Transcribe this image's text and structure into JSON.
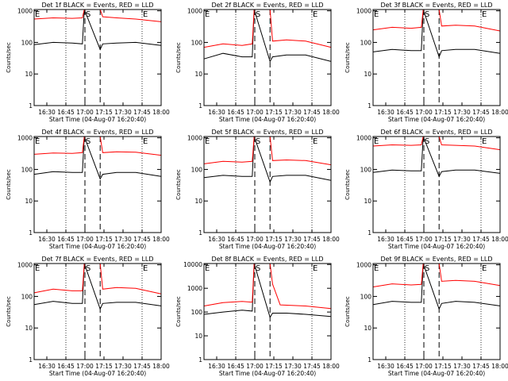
{
  "colors": {
    "events": "#000000",
    "lld": "#ff0000",
    "axis": "#000000"
  },
  "shared": {
    "xlabel": "Start Time (04-Aug-07 16:20:40)",
    "ylabel": "Counts/sec",
    "x_tick_labels": [
      "16:30",
      "16:45",
      "17:00",
      "17:15",
      "17:30",
      "17:45",
      "18:00"
    ],
    "y_tick_labels": [
      "1",
      "10",
      "100",
      "1000"
    ],
    "marker_e": "E",
    "marker_s": "S"
  },
  "chart_data": [
    {
      "type": "line",
      "title": "Det 1f BLACK = Events, RED = LLD",
      "xlabel": "Start Time (04-Aug-07 16:20:40)",
      "ylabel": "Counts/sec",
      "x_range_minutes": [
        20,
        120
      ],
      "ylim": [
        1,
        1100
      ],
      "yscale": "log",
      "x_ticks": [
        "16:30",
        "16:45",
        "17:00",
        "17:15",
        "17:30",
        "17:45",
        "18:00"
      ],
      "y_ticks": [
        "1",
        "10",
        "100",
        "1000"
      ],
      "y_tick_labels": [
        "1",
        "10",
        "100",
        "1000"
      ],
      "series": [
        {
          "name": "Events",
          "color": "#000000",
          "x": [
            20,
            35,
            50,
            58,
            59.5,
            72,
            74,
            85,
            100,
            120
          ],
          "y": [
            85,
            100,
            95,
            90,
            1100,
            60,
            90,
            95,
            100,
            80
          ]
        },
        {
          "name": "LLD",
          "color": "#ff0000",
          "x": [
            20,
            35,
            50,
            58,
            59.5,
            72,
            74,
            85,
            100,
            120
          ],
          "y": [
            550,
            600,
            580,
            600,
            1100,
            1100,
            650,
            600,
            550,
            450
          ]
        }
      ]
    },
    {
      "type": "line",
      "title": "Det 2f BLACK = Events, RED = LLD",
      "xlabel": "Start Time (04-Aug-07 16:20:40)",
      "ylabel": "Counts/sec",
      "x_range_minutes": [
        20,
        120
      ],
      "ylim": [
        1,
        1100
      ],
      "yscale": "log",
      "x_ticks": [
        "16:30",
        "16:45",
        "17:00",
        "17:15",
        "17:30",
        "17:45",
        "18:00"
      ],
      "y_ticks": [
        "1",
        "10",
        "100",
        "1000"
      ],
      "y_tick_labels": [
        "1",
        "10",
        "100",
        "1000"
      ],
      "series": [
        {
          "name": "Events",
          "color": "#000000",
          "x": [
            20,
            35,
            50,
            58,
            59.5,
            72,
            74,
            85,
            100,
            120
          ],
          "y": [
            30,
            45,
            35,
            35,
            1100,
            25,
            35,
            40,
            40,
            25
          ]
        },
        {
          "name": "LLD",
          "color": "#ff0000",
          "x": [
            20,
            35,
            50,
            58,
            59.5,
            72,
            74,
            85,
            100,
            120
          ],
          "y": [
            70,
            90,
            80,
            90,
            1100,
            1100,
            110,
            120,
            110,
            70
          ]
        }
      ]
    },
    {
      "type": "line",
      "title": "Det 3f BLACK = Events, RED = LLD",
      "xlabel": "Start Time (04-Aug-07 16:20:40)",
      "ylabel": "Counts/sec",
      "x_range_minutes": [
        20,
        120
      ],
      "ylim": [
        1,
        1100
      ],
      "yscale": "log",
      "x_ticks": [
        "16:30",
        "16:45",
        "17:00",
        "17:15",
        "17:30",
        "17:45",
        "18:00"
      ],
      "y_ticks": [
        "1",
        "10",
        "100",
        "1000"
      ],
      "y_tick_labels": [
        "1",
        "10",
        "100",
        "1000"
      ],
      "series": [
        {
          "name": "Events",
          "color": "#000000",
          "x": [
            20,
            35,
            50,
            58,
            59.5,
            72,
            74,
            85,
            100,
            120
          ],
          "y": [
            50,
            60,
            55,
            55,
            1100,
            35,
            55,
            60,
            60,
            45
          ]
        },
        {
          "name": "LLD",
          "color": "#ff0000",
          "x": [
            20,
            35,
            50,
            58,
            59.5,
            72,
            74,
            85,
            100,
            120
          ],
          "y": [
            250,
            300,
            280,
            300,
            1100,
            1100,
            330,
            350,
            330,
            230
          ]
        }
      ]
    },
    {
      "type": "line",
      "title": "Det 4f BLACK = Events, RED = LLD",
      "xlabel": "Start Time (04-Aug-07 16:20:40)",
      "ylabel": "Counts/sec",
      "x_range_minutes": [
        20,
        120
      ],
      "ylim": [
        1,
        1100
      ],
      "yscale": "log",
      "x_ticks": [
        "16:30",
        "16:45",
        "17:00",
        "17:15",
        "17:30",
        "17:45",
        "18:00"
      ],
      "y_ticks": [
        "1",
        "10",
        "100",
        "1000"
      ],
      "y_tick_labels": [
        "1",
        "10",
        "100",
        "1000"
      ],
      "series": [
        {
          "name": "Events",
          "color": "#000000",
          "x": [
            20,
            35,
            50,
            58,
            59.5,
            72,
            74,
            85,
            100,
            120
          ],
          "y": [
            70,
            85,
            80,
            80,
            1100,
            50,
            70,
            80,
            80,
            60
          ]
        },
        {
          "name": "LLD",
          "color": "#ff0000",
          "x": [
            20,
            35,
            50,
            58,
            59.5,
            72,
            74,
            85,
            100,
            120
          ],
          "y": [
            300,
            330,
            320,
            340,
            1100,
            1100,
            340,
            360,
            350,
            280
          ]
        }
      ]
    },
    {
      "type": "line",
      "title": "Det 5f BLACK = Events, RED = LLD",
      "xlabel": "Start Time (04-Aug-07 16:20:40)",
      "ylabel": "Counts/sec",
      "x_range_minutes": [
        20,
        120
      ],
      "ylim": [
        1,
        1100
      ],
      "yscale": "log",
      "x_ticks": [
        "16:30",
        "16:45",
        "17:00",
        "17:15",
        "17:30",
        "17:45",
        "18:00"
      ],
      "y_ticks": [
        "1",
        "10",
        "100",
        "1000"
      ],
      "y_tick_labels": [
        "1",
        "10",
        "100",
        "1000"
      ],
      "series": [
        {
          "name": "Events",
          "color": "#000000",
          "x": [
            20,
            35,
            50,
            58,
            59.5,
            72,
            74,
            85,
            100,
            120
          ],
          "y": [
            55,
            65,
            60,
            60,
            1100,
            40,
            60,
            65,
            65,
            45
          ]
        },
        {
          "name": "LLD",
          "color": "#ff0000",
          "x": [
            20,
            35,
            50,
            58,
            59.5,
            72,
            74,
            85,
            100,
            120
          ],
          "y": [
            150,
            180,
            170,
            180,
            1100,
            1100,
            190,
            200,
            190,
            140
          ]
        }
      ]
    },
    {
      "type": "line",
      "title": "Det 6f BLACK = Events, RED = LLD",
      "xlabel": "Start Time (04-Aug-07 16:20:40)",
      "ylabel": "Counts/sec",
      "x_range_minutes": [
        20,
        120
      ],
      "ylim": [
        1,
        1100
      ],
      "yscale": "log",
      "x_ticks": [
        "16:30",
        "16:45",
        "17:00",
        "17:15",
        "17:30",
        "17:45",
        "18:00"
      ],
      "y_ticks": [
        "1",
        "10",
        "100",
        "1000"
      ],
      "y_tick_labels": [
        "1",
        "10",
        "100",
        "1000"
      ],
      "series": [
        {
          "name": "Events",
          "color": "#000000",
          "x": [
            20,
            35,
            50,
            58,
            59.5,
            72,
            74,
            85,
            100,
            120
          ],
          "y": [
            80,
            95,
            90,
            90,
            1100,
            60,
            85,
            95,
            95,
            75
          ]
        },
        {
          "name": "LLD",
          "color": "#ff0000",
          "x": [
            20,
            35,
            50,
            58,
            59.5,
            72,
            74,
            85,
            100,
            120
          ],
          "y": [
            550,
            600,
            580,
            600,
            1100,
            1100,
            600,
            580,
            550,
            420
          ]
        }
      ]
    },
    {
      "type": "line",
      "title": "Det 7f BLACK = Events, RED = LLD",
      "xlabel": "Start Time (04-Aug-07 16:20:40)",
      "ylabel": "Counts/sec",
      "x_range_minutes": [
        20,
        120
      ],
      "ylim": [
        1,
        1100
      ],
      "yscale": "log",
      "x_ticks": [
        "16:30",
        "16:45",
        "17:00",
        "17:15",
        "17:30",
        "17:45",
        "18:00"
      ],
      "y_ticks": [
        "1",
        "10",
        "100",
        "1000"
      ],
      "y_tick_labels": [
        "1",
        "10",
        "100",
        "1000"
      ],
      "series": [
        {
          "name": "Events",
          "color": "#000000",
          "x": [
            20,
            35,
            50,
            58,
            59.5,
            72,
            74,
            85,
            100,
            120
          ],
          "y": [
            55,
            70,
            60,
            60,
            1100,
            40,
            60,
            65,
            65,
            50
          ]
        },
        {
          "name": "LLD",
          "color": "#ff0000",
          "x": [
            20,
            35,
            50,
            58,
            59.5,
            72,
            74,
            85,
            100,
            120
          ],
          "y": [
            130,
            170,
            150,
            150,
            1100,
            1100,
            170,
            190,
            180,
            120
          ]
        }
      ]
    },
    {
      "type": "line",
      "title": "Det 8f BLACK = Events, RED = LLD",
      "xlabel": "Start Time (04-Aug-07 16:20:40)",
      "ylabel": "Counts/sec",
      "x_range_minutes": [
        20,
        120
      ],
      "ylim": [
        1,
        11000
      ],
      "yscale": "log",
      "x_ticks": [
        "16:30",
        "16:45",
        "17:00",
        "17:15",
        "17:30",
        "17:45",
        "18:00"
      ],
      "y_ticks": [
        "1",
        "10",
        "100",
        "1000",
        "10000"
      ],
      "y_tick_labels": [
        "1",
        "10",
        "100",
        "1000",
        "10000"
      ],
      "series": [
        {
          "name": "Events",
          "color": "#000000",
          "x": [
            20,
            35,
            50,
            58,
            59.5,
            72,
            74,
            85,
            100,
            120
          ],
          "y": [
            80,
            100,
            120,
            110,
            11000,
            60,
            90,
            90,
            80,
            65
          ]
        },
        {
          "name": "LLD",
          "color": "#ff0000",
          "x": [
            20,
            35,
            50,
            58,
            59.5,
            72,
            74,
            80,
            100,
            120
          ],
          "y": [
            180,
            250,
            280,
            260,
            11000,
            11000,
            1500,
            200,
            180,
            140
          ]
        }
      ]
    },
    {
      "type": "line",
      "title": "Det 9f BLACK = Events, RED = LLD",
      "xlabel": "Start Time (04-Aug-07 16:20:40)",
      "ylabel": "Counts/sec",
      "x_range_minutes": [
        20,
        120
      ],
      "ylim": [
        1,
        1100
      ],
      "yscale": "log",
      "x_ticks": [
        "16:30",
        "16:45",
        "17:00",
        "17:15",
        "17:30",
        "17:45",
        "18:00"
      ],
      "y_ticks": [
        "1",
        "10",
        "100",
        "1000"
      ],
      "y_tick_labels": [
        "1",
        "10",
        "100",
        "1000"
      ],
      "series": [
        {
          "name": "Events",
          "color": "#000000",
          "x": [
            20,
            35,
            50,
            58,
            59.5,
            72,
            74,
            85,
            100,
            120
          ],
          "y": [
            55,
            70,
            65,
            65,
            1100,
            40,
            60,
            70,
            65,
            50
          ]
        },
        {
          "name": "LLD",
          "color": "#ff0000",
          "x": [
            20,
            35,
            50,
            58,
            59.5,
            72,
            74,
            85,
            100,
            120
          ],
          "y": [
            200,
            250,
            230,
            240,
            1100,
            1100,
            300,
            320,
            300,
            220
          ]
        }
      ]
    }
  ]
}
